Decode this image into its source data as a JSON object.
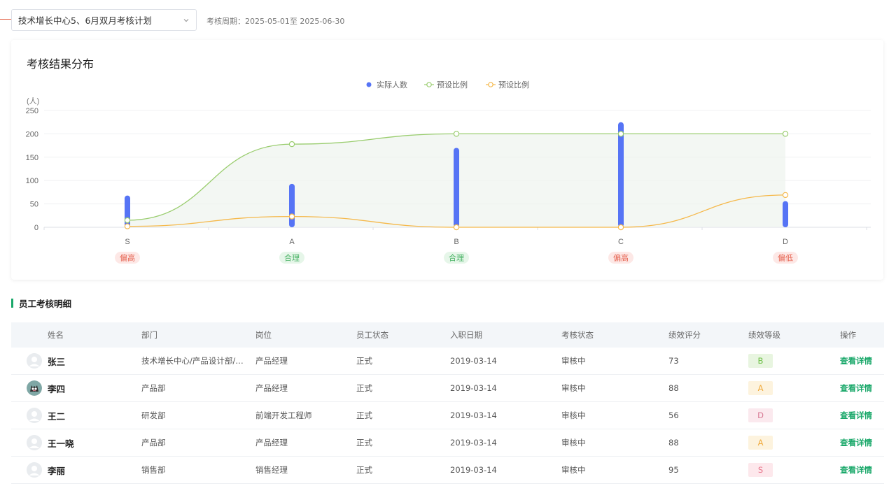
{
  "header": {
    "plan_select_value": "技术增长中心5、6月双月考核计划",
    "period_label": "考核周期：",
    "period_value": "2025-05-01至 2025-06-30"
  },
  "chart_card": {
    "title": "考核结果分布"
  },
  "chart_data": {
    "type": "bar",
    "categories": [
      "S",
      "A",
      "B",
      "C",
      "D"
    ],
    "unit_label": "(人)",
    "ylim": [
      0,
      250
    ],
    "yticks": [
      0,
      50,
      100,
      150,
      200,
      250
    ],
    "legend_position": "top-center",
    "grid": true,
    "series": [
      {
        "name": "实际人数",
        "type": "bar",
        "color": "#5674f5",
        "values": [
          68,
          93,
          170,
          225,
          56
        ]
      },
      {
        "name": "预设比例",
        "type": "line",
        "color": "#9acd6f",
        "values": [
          15,
          178,
          200,
          200,
          200
        ]
      },
      {
        "name": "预设比例",
        "type": "line",
        "color": "#f5b84a",
        "values": [
          2,
          23,
          0,
          0,
          69
        ]
      }
    ],
    "category_tags": [
      {
        "text": "偏高",
        "status": "high"
      },
      {
        "text": "合理",
        "status": "ok"
      },
      {
        "text": "合理",
        "status": "ok"
      },
      {
        "text": "偏高",
        "status": "high"
      },
      {
        "text": "偏低",
        "status": "low"
      }
    ],
    "tag_colors": {
      "high": {
        "bg": "#fde8e6",
        "fg": "#e5604d"
      },
      "ok": {
        "bg": "#e6f6e9",
        "fg": "#46b162"
      },
      "low": {
        "bg": "#fde8e6",
        "fg": "#e5604d"
      }
    }
  },
  "detail": {
    "section_title": "员工考核明细",
    "columns": [
      "姓名",
      "部门",
      "岗位",
      "员工状态",
      "入职日期",
      "考核状态",
      "绩效评分",
      "绩效等级",
      "操作"
    ],
    "rows": [
      {
        "name": "张三",
        "dept": "技术增长中心/产品设计部/培...",
        "position": "产品经理",
        "state": "正式",
        "date": "2019-03-14",
        "review": "审核中",
        "score": "73",
        "grade": "B",
        "op": "查看详情",
        "avatar": "default"
      },
      {
        "name": "李四",
        "dept": "产品部",
        "position": "产品经理",
        "state": "正式",
        "date": "2019-03-14",
        "review": "审核中",
        "score": "88",
        "grade": "A",
        "op": "查看详情",
        "avatar": "cat"
      },
      {
        "name": "王二",
        "dept": "研发部",
        "position": "前端开发工程师",
        "state": "正式",
        "date": "2019-03-14",
        "review": "审核中",
        "score": "56",
        "grade": "D",
        "op": "查看详情",
        "avatar": "default"
      },
      {
        "name": "王一晓",
        "dept": "产品部",
        "position": "产品经理",
        "state": "正式",
        "date": "2019-03-14",
        "review": "审核中",
        "score": "88",
        "grade": "A",
        "op": "查看详情",
        "avatar": "default"
      },
      {
        "name": "李丽",
        "dept": "销售部",
        "position": "销售经理",
        "state": "正式",
        "date": "2019-03-14",
        "review": "审核中",
        "score": "95",
        "grade": "S",
        "op": "查看详情",
        "avatar": "default"
      }
    ]
  }
}
